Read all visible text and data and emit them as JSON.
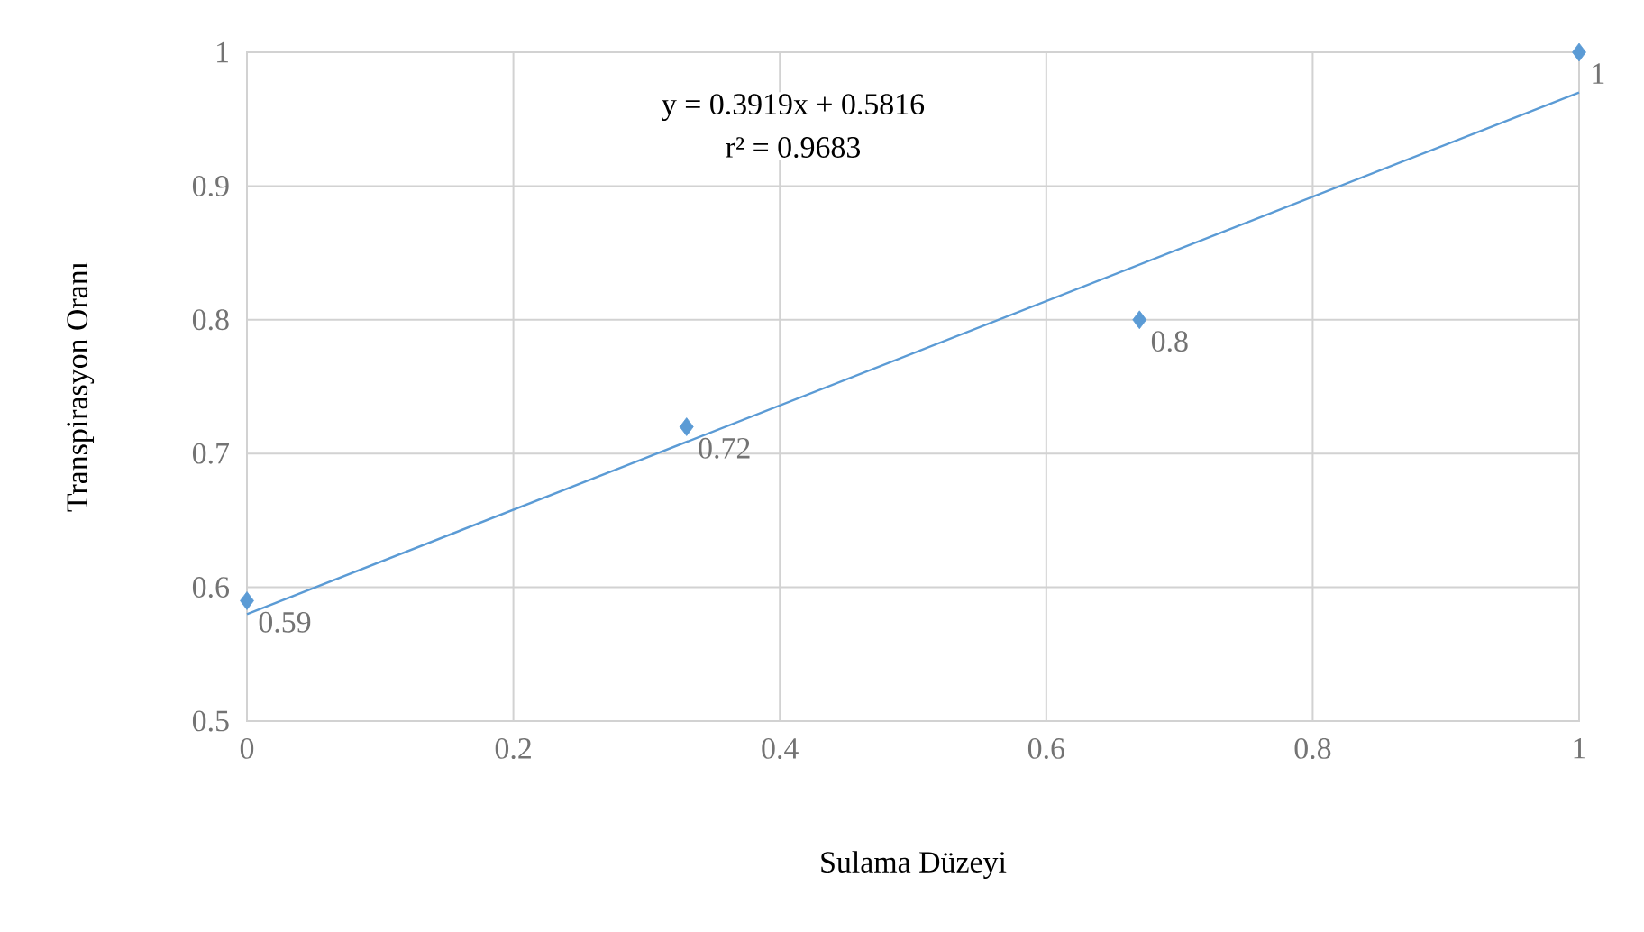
{
  "chart_data": {
    "type": "scatter",
    "xlabel": "Sulama Düzeyi",
    "ylabel": "Transpirasyon Oranı",
    "xlim": [
      0,
      1
    ],
    "ylim": [
      0.5,
      1
    ],
    "xticks": [
      0,
      0.2,
      0.4,
      0.6,
      0.8,
      1
    ],
    "yticks": [
      0.5,
      0.6,
      0.7,
      0.8,
      0.9,
      1
    ],
    "grid": true,
    "series": [
      {
        "color": "#5b9bd5",
        "marker": "diamond",
        "x": [
          0,
          0.33,
          0.67,
          1
        ],
        "values": [
          0.59,
          0.72,
          0.8,
          1
        ],
        "data_labels": true
      },
      {
        "type": "line",
        "color": "#5b9bd5",
        "marker": "none",
        "line_style": "solid",
        "x": [
          0,
          1
        ],
        "values": [
          0.58,
          0.97
        ]
      }
    ],
    "annotations": [
      "y = 0.3919x + 0.5816",
      "r² = 0.9683"
    ]
  }
}
